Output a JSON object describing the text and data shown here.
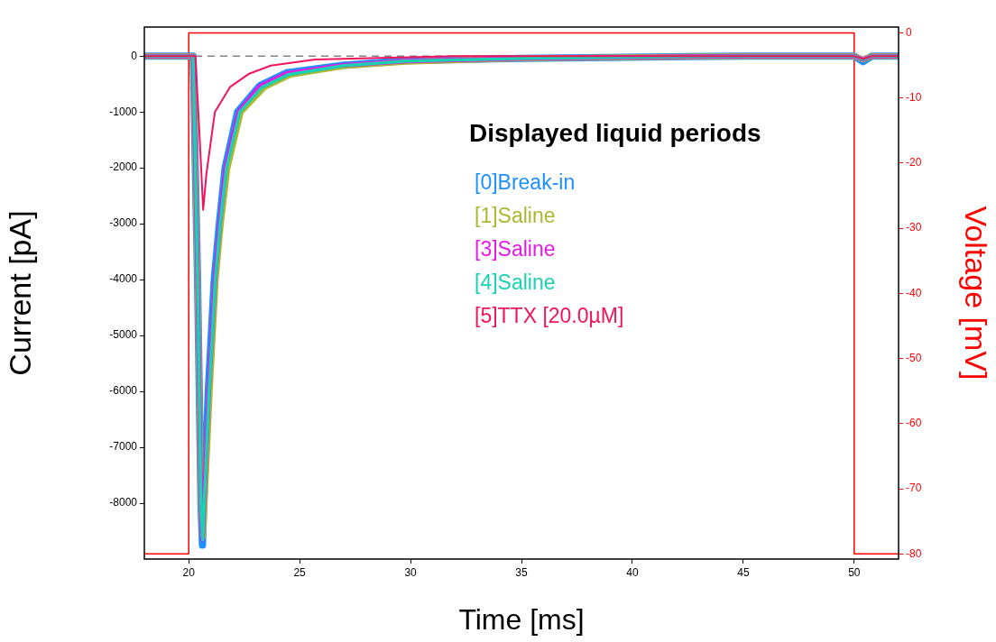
{
  "chart_data": {
    "type": "line",
    "xlabel": "Time [ms]",
    "ylabel": "Current [pA]",
    "y2label": "Voltage [mV]",
    "legend_title": "Displayed liquid periods",
    "legend": "right",
    "grid": false,
    "xlim": [
      18,
      52
    ],
    "xticks": [
      20,
      25,
      30,
      35,
      40,
      45,
      50
    ],
    "ylim": [
      -9000,
      520
    ],
    "yticks": [
      0,
      -1000,
      -2000,
      -3000,
      -4000,
      -5000,
      -6000,
      -7000,
      -8000
    ],
    "y2lim": [
      -80.8,
      0.9
    ],
    "y2ticks": [
      0,
      -10,
      -20,
      -30,
      -40,
      -50,
      -60,
      -70,
      -80
    ],
    "ref_lines": [
      {
        "axis": "y",
        "value": 0,
        "color": "#808080",
        "line_style": "dashed"
      }
    ],
    "series": [
      {
        "axis": "y2",
        "color": "#ff0000",
        "x": [
          18,
          20,
          20,
          50,
          50,
          52
        ],
        "values": [
          -80,
          -80,
          0,
          0,
          -80,
          -80
        ]
      },
      {
        "name": "[0]Break-in",
        "color": "#1e90ff",
        "x": [
          18,
          20,
          20.2,
          20.4,
          20.55,
          20.62,
          20.68,
          20.88,
          21.15,
          21.38,
          21.64,
          22.2,
          23.2,
          24.4,
          27,
          29.8,
          35,
          45,
          50,
          50.4,
          50.8,
          52
        ],
        "values": [
          0,
          0,
          0,
          -4000,
          -8000,
          -8750,
          -8000,
          -6000,
          -4000,
          -3000,
          -2000,
          -1000,
          -530,
          -300,
          -160,
          -80,
          -40,
          0,
          0,
          -100,
          0,
          0
        ]
      },
      {
        "name": "[1]Saline",
        "color": "#aab832",
        "x": [
          18,
          20,
          20.2,
          20.4,
          20.55,
          20.64,
          20.72,
          20.95,
          21.22,
          21.45,
          21.75,
          22.35,
          23.4,
          24.6,
          27,
          29.8,
          35,
          45,
          50,
          50.4,
          50.8,
          52
        ],
        "values": [
          0,
          0,
          0,
          -4000,
          -8000,
          -8600,
          -8000,
          -6000,
          -4000,
          -3000,
          -2000,
          -1000,
          -560,
          -330,
          -180,
          -100,
          -40,
          0,
          0,
          -60,
          0,
          0
        ]
      },
      {
        "name": "[3]Saline",
        "color": "#e619e6",
        "x": [
          18,
          20,
          20.2,
          20.4,
          20.55,
          20.62,
          20.69,
          20.9,
          21.18,
          21.4,
          21.66,
          22.25,
          23.2,
          24.4,
          27,
          29.8,
          35,
          45,
          50,
          50.4,
          50.8,
          52
        ],
        "values": [
          0,
          0,
          0,
          -4000,
          -8000,
          -8650,
          -8000,
          -6000,
          -4000,
          -3000,
          -2000,
          -1000,
          -540,
          -310,
          -160,
          -90,
          -40,
          0,
          0,
          -60,
          0,
          0
        ]
      },
      {
        "name": "[4]Saline",
        "color": "#19d2b4",
        "x": [
          18,
          20,
          20.2,
          20.4,
          20.55,
          20.63,
          20.7,
          20.92,
          21.2,
          21.42,
          21.7,
          22.3,
          23.3,
          24.5,
          27,
          29.8,
          35,
          45,
          50,
          50.4,
          50.8,
          52
        ],
        "values": [
          0,
          0,
          0,
          -4000,
          -8000,
          -8650,
          -8000,
          -6000,
          -4000,
          -3000,
          -2000,
          -1000,
          -560,
          -330,
          -170,
          -90,
          -40,
          0,
          0,
          -60,
          0,
          0
        ]
      },
      {
        "name": "[5]TTX [20.0µM]",
        "color": "#f0145a",
        "x": [
          18,
          20,
          20.3,
          20.5,
          20.65,
          20.8,
          21.18,
          21.87,
          22.7,
          23.7,
          25.7,
          32,
          45,
          50,
          50.4,
          50.8,
          52
        ],
        "values": [
          0,
          0,
          0,
          -1500,
          -2750,
          -2100,
          -1000,
          -550,
          -320,
          -170,
          -60,
          0,
          0,
          0,
          -50,
          0,
          0
        ]
      }
    ]
  }
}
